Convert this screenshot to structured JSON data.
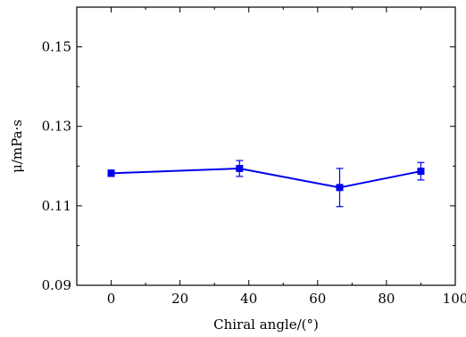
{
  "chart_data": {
    "type": "line",
    "xlabel": "Chiral angle/(°)",
    "ylabel": "μ/mPa·s",
    "xlim": [
      -10,
      100
    ],
    "ylim": [
      0.09,
      0.16
    ],
    "xticks": [
      0,
      20,
      40,
      60,
      80,
      100
    ],
    "xtick_labels": [
      "0",
      "20",
      "40",
      "60",
      "80",
      "100"
    ],
    "yticks": [
      0.09,
      0.11,
      0.13,
      0.15
    ],
    "ytick_labels": [
      "0.09",
      "0.11",
      "0.13",
      "0.15"
    ],
    "grid": false,
    "series": [
      {
        "x": [
          0,
          37.3,
          66.4,
          90
        ],
        "y": [
          0.1182,
          0.1194,
          0.1146,
          0.1187
        ],
        "error": [
          0.0008,
          0.002,
          0.0048,
          0.0022
        ],
        "marker": "square",
        "color": "#0000ee"
      }
    ]
  }
}
